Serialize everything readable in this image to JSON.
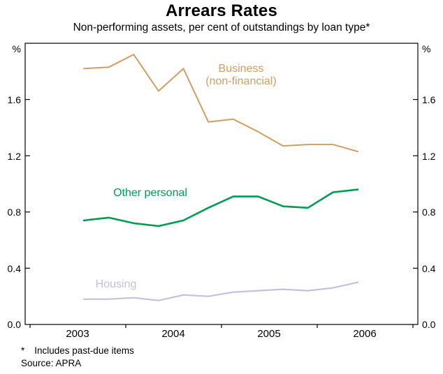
{
  "title": "Arrears Rates",
  "subtitle": "Non-performing assets, per cent of outstandings by loan type*",
  "axes": {
    "y_unit_left": "%",
    "y_unit_right": "%",
    "y_ticks": [
      "0.0",
      "0.4",
      "0.8",
      "1.2",
      "1.6"
    ],
    "x_ticks": [
      "2003",
      "2004",
      "2005",
      "2006"
    ]
  },
  "labels": {
    "business_line1": "Business",
    "business_line2": "(non-financial)",
    "other_personal": "Other personal",
    "housing": "Housing"
  },
  "footnote": {
    "marker": "*",
    "text": "Includes past-due items"
  },
  "source": "Source: APRA",
  "colors": {
    "business": "#d09e62",
    "other_personal": "#009c52",
    "housing": "#c4c1dc"
  },
  "chart_data": {
    "type": "line",
    "title": "Arrears Rates",
    "subtitle": "Non-performing assets, per cent of outstandings by loan type*",
    "ylabel": "%",
    "ylim": [
      0,
      2.0
    ],
    "yticks": [
      0,
      0.4,
      0.8,
      1.2,
      1.6,
      2.0
    ],
    "x_axis_years": [
      2003,
      2004,
      2005,
      2006
    ],
    "x": [
      "Mar 2003",
      "Jun 2003",
      "Sep 2003",
      "Dec 2003",
      "Mar 2004",
      "Jun 2004",
      "Sep 2004",
      "Dec 2004",
      "Mar 2005",
      "Jun 2005",
      "Sep 2005",
      "Dec 2005"
    ],
    "series": [
      {
        "name": "Business (non-financial)",
        "color": "#d09e62",
        "values": [
          1.82,
          1.83,
          1.92,
          1.66,
          1.82,
          1.44,
          1.46,
          1.37,
          1.27,
          1.28,
          1.28,
          1.23
        ]
      },
      {
        "name": "Other personal",
        "color": "#009c52",
        "values": [
          0.74,
          0.76,
          0.72,
          0.7,
          0.74,
          0.83,
          0.91,
          0.91,
          0.84,
          0.83,
          0.94,
          0.96
        ]
      },
      {
        "name": "Housing",
        "color": "#c4c1dc",
        "values": [
          0.18,
          0.18,
          0.19,
          0.17,
          0.21,
          0.2,
          0.23,
          0.24,
          0.25,
          0.24,
          0.26,
          0.3
        ]
      }
    ],
    "legend_position": "inline-labels",
    "grid": false,
    "footnote": "* Includes past-due items",
    "source": "Source: APRA"
  }
}
